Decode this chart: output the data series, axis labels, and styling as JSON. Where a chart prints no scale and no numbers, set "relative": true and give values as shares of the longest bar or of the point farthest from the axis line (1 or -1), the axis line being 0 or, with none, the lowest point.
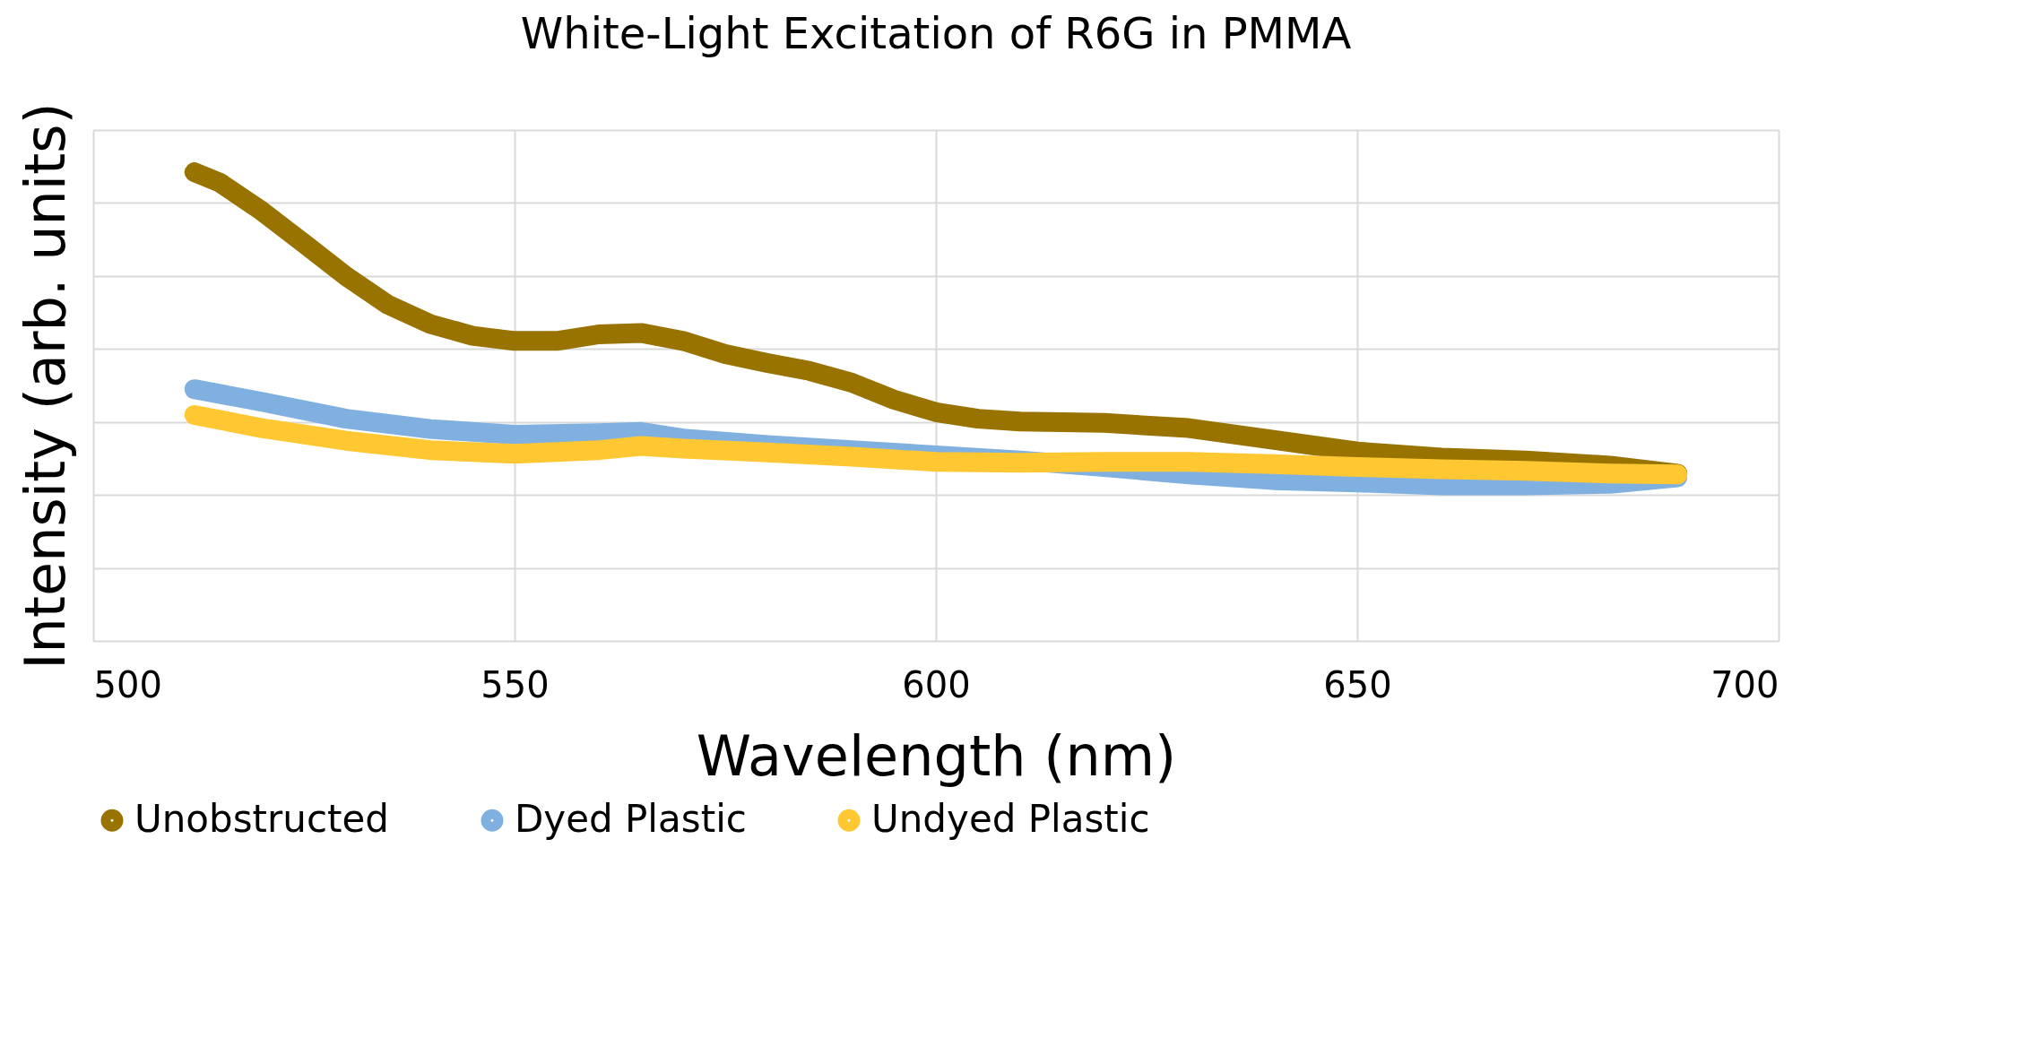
{
  "chart_data": {
    "type": "line",
    "title": "White-Light Excitation of R6G in PMMA",
    "xlabel": "Wavelength (nm)",
    "ylabel": "Intensity (arb. units)",
    "relative": true,
    "xlim": [
      500,
      700
    ],
    "xticks": [
      500,
      550,
      600,
      650,
      700
    ],
    "grid": true,
    "legend": "bottom",
    "tick_labels": "x",
    "line_style": "solid",
    "series": [
      {
        "name": "Unobstructed",
        "color": "#997300",
        "x": [
          512,
          515,
          520,
          525,
          530,
          535,
          540,
          545,
          550,
          555,
          560,
          565,
          570,
          575,
          580,
          585,
          590,
          595,
          600,
          605,
          610,
          620,
          630,
          640,
          650,
          660,
          670,
          680,
          688
        ],
        "values": [
          1.0,
          0.978,
          0.917,
          0.848,
          0.778,
          0.717,
          0.676,
          0.651,
          0.64,
          0.64,
          0.654,
          0.657,
          0.64,
          0.612,
          0.593,
          0.576,
          0.551,
          0.515,
          0.488,
          0.474,
          0.468,
          0.465,
          0.454,
          0.429,
          0.404,
          0.391,
          0.385,
          0.374,
          0.357
        ]
      },
      {
        "name": "Dyed Plastic",
        "color": "#7fb0e0",
        "x": [
          512,
          520,
          530,
          540,
          550,
          560,
          565,
          570,
          580,
          590,
          600,
          610,
          620,
          630,
          640,
          650,
          660,
          670,
          680,
          688
        ],
        "values": [
          0.537,
          0.51,
          0.474,
          0.452,
          0.44,
          0.443,
          0.446,
          0.432,
          0.418,
          0.407,
          0.396,
          0.385,
          0.371,
          0.355,
          0.343,
          0.338,
          0.332,
          0.332,
          0.335,
          0.349
        ]
      },
      {
        "name": "Undyed Plastic",
        "color": "#ffc832",
        "x": [
          512,
          520,
          530,
          540,
          550,
          560,
          565,
          570,
          580,
          590,
          600,
          610,
          620,
          630,
          640,
          650,
          660,
          670,
          680,
          688
        ],
        "values": [
          0.482,
          0.454,
          0.427,
          0.407,
          0.399,
          0.407,
          0.416,
          0.41,
          0.402,
          0.393,
          0.382,
          0.38,
          0.382,
          0.382,
          0.377,
          0.371,
          0.366,
          0.363,
          0.357,
          0.355
        ]
      }
    ]
  }
}
